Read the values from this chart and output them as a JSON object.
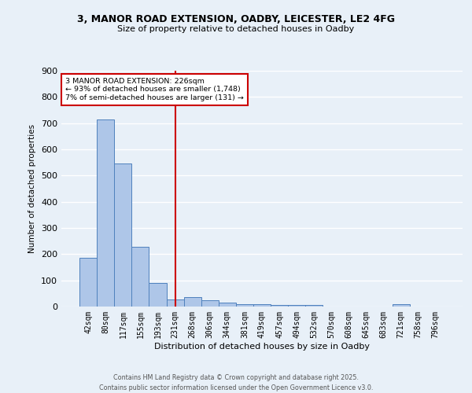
{
  "title_line1": "3, MANOR ROAD EXTENSION, OADBY, LEICESTER, LE2 4FG",
  "title_line2": "Size of property relative to detached houses in Oadby",
  "xlabel": "Distribution of detached houses by size in Oadby",
  "ylabel": "Number of detached properties",
  "categories": [
    "42sqm",
    "80sqm",
    "117sqm",
    "155sqm",
    "193sqm",
    "231sqm",
    "268sqm",
    "306sqm",
    "344sqm",
    "381sqm",
    "419sqm",
    "457sqm",
    "494sqm",
    "532sqm",
    "570sqm",
    "608sqm",
    "645sqm",
    "683sqm",
    "721sqm",
    "758sqm",
    "796sqm"
  ],
  "values": [
    185,
    715,
    545,
    228,
    90,
    27,
    37,
    25,
    14,
    10,
    8,
    5,
    5,
    5,
    0,
    0,
    0,
    0,
    8,
    0,
    0
  ],
  "bar_color": "#aec6e8",
  "bar_edge_color": "#4f81bd",
  "background_color": "#e8f0f8",
  "grid_color": "#ffffff",
  "red_line_x": 5,
  "annotation_title": "3 MANOR ROAD EXTENSION: 226sqm",
  "annotation_line2": "← 93% of detached houses are smaller (1,748)",
  "annotation_line3": "7% of semi-detached houses are larger (131) →",
  "annotation_box_color": "#ffffff",
  "annotation_box_edge": "#cc0000",
  "vline_color": "#cc0000",
  "footer_line1": "Contains HM Land Registry data © Crown copyright and database right 2025.",
  "footer_line2": "Contains public sector information licensed under the Open Government Licence v3.0.",
  "ylim": [
    0,
    900
  ],
  "yticks": [
    0,
    100,
    200,
    300,
    400,
    500,
    600,
    700,
    800,
    900
  ]
}
